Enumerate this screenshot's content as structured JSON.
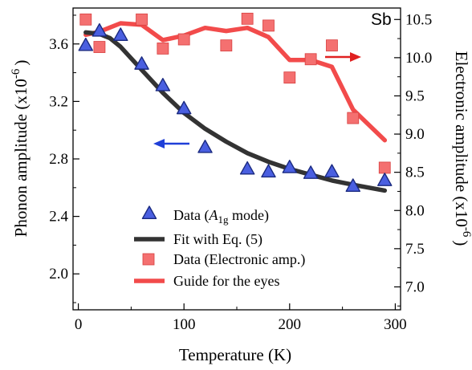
{
  "chart_data": {
    "type": "scatter",
    "annotation": "Sb",
    "xlabel": "Temperature (K)",
    "ylabel_left": "Phonon amplitude (x10",
    "ylabel_left_exp": "-6",
    "ylabel_left_close": ")",
    "ylabel_right": "Electronic amplitude (x10",
    "ylabel_right_exp": "-6",
    "ylabel_right_close": ")",
    "xlim": [
      -5,
      305
    ],
    "ylim_left": [
      1.75,
      3.85
    ],
    "ylim_right": [
      6.7,
      10.65
    ],
    "x_ticks": [
      0,
      100,
      200,
      300
    ],
    "y_left_ticks": [
      2.0,
      2.4,
      2.8,
      3.2,
      3.6
    ],
    "y_left_tick_labels": [
      "2.0",
      "2.4",
      "2.8",
      "3.2",
      "3.6"
    ],
    "y_right_ticks": [
      7.0,
      7.5,
      8.0,
      8.5,
      9.0,
      9.5,
      10.0,
      10.5
    ],
    "y_right_tick_labels": [
      "7.0",
      "7.5",
      "8.0",
      "8.5",
      "9.0",
      "9.5",
      "10.0",
      "10.5"
    ],
    "grid": false,
    "legend_position": "bottom-center",
    "series": [
      {
        "name_prefix": "Data (",
        "name_italic": "A",
        "name_sub": "1g",
        "name_suffix": " mode)",
        "kind": "scatter",
        "marker": "triangle",
        "axis": "left",
        "color": "#4a5fe0",
        "x": [
          7,
          20,
          40,
          60,
          80,
          100,
          120,
          160,
          180,
          200,
          220,
          240,
          260,
          290
        ],
        "y": [
          3.59,
          3.69,
          3.66,
          3.46,
          3.31,
          3.15,
          2.88,
          2.73,
          2.71,
          2.74,
          2.7,
          2.71,
          2.61,
          2.65
        ]
      },
      {
        "name": "Fit with Eq. (5)",
        "kind": "line",
        "axis": "left",
        "color": "#333333",
        "x": [
          7,
          20,
          30,
          40,
          50,
          60,
          70,
          80,
          90,
          100,
          120,
          140,
          160,
          180,
          200,
          220,
          240,
          260,
          290
        ],
        "y": [
          3.68,
          3.67,
          3.64,
          3.58,
          3.5,
          3.42,
          3.34,
          3.26,
          3.19,
          3.12,
          3.01,
          2.92,
          2.84,
          2.78,
          2.73,
          2.69,
          2.65,
          2.62,
          2.58
        ]
      },
      {
        "name": "Data (Electronic amp.)",
        "kind": "scatter",
        "marker": "square",
        "axis": "right",
        "color": "#f47070",
        "x": [
          7,
          20,
          60,
          80,
          100,
          140,
          160,
          180,
          200,
          220,
          240,
          260,
          290
        ],
        "y": [
          10.5,
          10.14,
          10.5,
          10.12,
          10.24,
          10.16,
          10.51,
          10.42,
          9.74,
          9.98,
          10.16,
          9.21,
          8.56
        ]
      },
      {
        "name": "Guide for the eyes",
        "kind": "line",
        "axis": "right",
        "color": "#f24b4b",
        "x": [
          7,
          20,
          40,
          60,
          80,
          100,
          120,
          140,
          160,
          180,
          200,
          220,
          240,
          260,
          290
        ],
        "y": [
          10.3,
          10.34,
          10.45,
          10.43,
          10.23,
          10.29,
          10.39,
          10.35,
          10.39,
          10.27,
          9.97,
          9.97,
          9.88,
          9.32,
          8.92
        ]
      }
    ],
    "arrows": [
      {
        "points_to": "left",
        "color": "#1f3fd8"
      },
      {
        "points_to": "right",
        "color": "#e02020"
      }
    ]
  }
}
